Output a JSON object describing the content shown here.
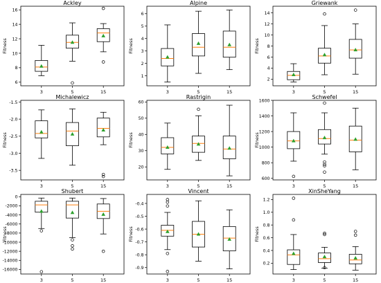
{
  "x_tick_labels": [
    "3",
    "5",
    "15"
  ],
  "ylabel": "Fitness",
  "colors": {
    "box": "#000000",
    "median": "#ff7f0e",
    "mean": "#2ca02c",
    "background": "#ffffff"
  },
  "chart_data": [
    {
      "type": "box",
      "title": "Ackley",
      "ylabel": "Fitness",
      "categories": [
        "3",
        "5",
        "15"
      ],
      "ylim": [
        5.5,
        16.5
      ],
      "yticks": [
        6,
        8,
        10,
        12,
        14,
        16
      ],
      "ytick_labels": [
        "6",
        "8",
        "10",
        "12",
        "14",
        "16"
      ],
      "boxes": [
        {
          "whislo": 6.9,
          "q1": 7.5,
          "med": 8.1,
          "q3": 9.0,
          "whishi": 11.1,
          "mean": 8.2,
          "fliers": []
        },
        {
          "whislo": 8.9,
          "q1": 10.7,
          "med": 11.5,
          "q3": 12.5,
          "whishi": 14.2,
          "mean": 11.5,
          "fliers": [
            5.9
          ]
        },
        {
          "whislo": 10.2,
          "q1": 11.6,
          "med": 12.8,
          "q3": 13.4,
          "whishi": 14.1,
          "mean": 12.4,
          "fliers": [
            16.2,
            8.8
          ]
        }
      ]
    },
    {
      "type": "box",
      "title": "Alpine",
      "ylabel": "Fitness",
      "categories": [
        "3",
        "5",
        "15"
      ],
      "ylim": [
        0.2,
        6.6
      ],
      "yticks": [
        1,
        2,
        3,
        4,
        5,
        6
      ],
      "ytick_labels": [
        "1",
        "2",
        "3",
        "4",
        "5",
        "6"
      ],
      "boxes": [
        {
          "whislo": 0.5,
          "q1": 1.8,
          "med": 2.4,
          "q3": 3.2,
          "whishi": 5.1,
          "mean": 2.5,
          "fliers": []
        },
        {
          "whislo": 1.2,
          "q1": 2.6,
          "med": 3.3,
          "q3": 4.4,
          "whishi": 6.2,
          "mean": 3.6,
          "fliers": []
        },
        {
          "whislo": 1.5,
          "q1": 2.5,
          "med": 3.3,
          "q3": 4.6,
          "whishi": 6.3,
          "mean": 3.5,
          "fliers": []
        }
      ]
    },
    {
      "type": "box",
      "title": "Griewank",
      "ylabel": "Fitness",
      "categories": [
        "3",
        "5",
        "15"
      ],
      "ylim": [
        0.8,
        15.2
      ],
      "yticks": [
        2,
        4,
        6,
        8,
        10,
        12,
        14
      ],
      "ytick_labels": [
        "2",
        "4",
        "6",
        "8",
        "10",
        "12",
        "14"
      ],
      "boxes": [
        {
          "whislo": 1.5,
          "q1": 1.9,
          "med": 2.7,
          "q3": 3.4,
          "whishi": 4.8,
          "mean": 2.8,
          "fliers": []
        },
        {
          "whislo": 2.8,
          "q1": 4.9,
          "med": 6.2,
          "q3": 7.6,
          "whishi": 11.7,
          "mean": 6.4,
          "fliers": [
            13.8
          ]
        },
        {
          "whislo": 2.9,
          "q1": 5.8,
          "med": 7.3,
          "q3": 9.2,
          "whishi": 12.0,
          "mean": 7.3,
          "fliers": [
            14.5
          ]
        }
      ]
    },
    {
      "type": "box",
      "title": "Michalewicz",
      "ylabel": "Fitness",
      "categories": [
        "3",
        "5",
        "15"
      ],
      "ylim": [
        -3.78,
        -1.45
      ],
      "yticks": [
        -3.5,
        -3.0,
        -2.5,
        -2.0,
        -1.5
      ],
      "ytick_labels": [
        "-3.5",
        "-3.0",
        "-2.5",
        "-2.0",
        "-1.5"
      ],
      "boxes": [
        {
          "whislo": -3.15,
          "q1": -2.55,
          "med": -2.42,
          "q3": -2.05,
          "whishi": -1.73,
          "mean": -2.38,
          "fliers": []
        },
        {
          "whislo": -3.35,
          "q1": -2.78,
          "med": -2.35,
          "q3": -2.1,
          "whishi": -1.7,
          "mean": -2.44,
          "fliers": []
        },
        {
          "whislo": -2.75,
          "q1": -2.52,
          "med": -2.27,
          "q3": -1.97,
          "whishi": -1.8,
          "mean": -2.32,
          "fliers": [
            -3.62,
            -3.68
          ]
        }
      ]
    },
    {
      "type": "box",
      "title": "Rastrigin",
      "ylabel": "Fitness",
      "categories": [
        "3",
        "5",
        "15"
      ],
      "ylim": [
        12,
        61
      ],
      "yticks": [
        20,
        30,
        40,
        50,
        60
      ],
      "ytick_labels": [
        "20",
        "30",
        "40",
        "50",
        "60"
      ],
      "boxes": [
        {
          "whislo": 18.5,
          "q1": 28.0,
          "med": 32.0,
          "q3": 38.0,
          "whishi": 47.0,
          "mean": 32.0,
          "fliers": []
        },
        {
          "whislo": 24.0,
          "q1": 29.0,
          "med": 34.5,
          "q3": 39.0,
          "whishi": 51.5,
          "mean": 34.0,
          "fliers": [
            55.5
          ]
        },
        {
          "whislo": 14.5,
          "q1": 25.0,
          "med": 31.0,
          "q3": 39.0,
          "whishi": 58.0,
          "mean": 31.5,
          "fliers": []
        }
      ]
    },
    {
      "type": "box",
      "title": "Schwefel",
      "ylabel": "Fitness",
      "categories": [
        "3",
        "5",
        "15"
      ],
      "ylim": [
        580,
        1600
      ],
      "yticks": [
        600,
        800,
        1000,
        1200,
        1400,
        1600
      ],
      "ytick_labels": [
        "600",
        "800",
        "1000",
        "1200",
        "1400",
        "1600"
      ],
      "boxes": [
        {
          "whislo": 820,
          "q1": 980,
          "med": 1080,
          "q3": 1200,
          "whishi": 1440,
          "mean": 1080,
          "fliers": [
            625
          ]
        },
        {
          "whislo": 910,
          "q1": 1040,
          "med": 1110,
          "q3": 1225,
          "whishi": 1440,
          "mean": 1120,
          "fliers": [
            1565,
            810,
            780,
            760,
            680
          ]
        },
        {
          "whislo": 710,
          "q1": 940,
          "med": 1090,
          "q3": 1270,
          "whishi": 1500,
          "mean": 1100,
          "fliers": []
        }
      ]
    },
    {
      "type": "box",
      "title": "Shubert",
      "ylabel": "Fitness",
      "categories": [
        "3",
        "5",
        "15"
      ],
      "ylim": [
        -17000,
        500
      ],
      "yticks": [
        -16000,
        -14000,
        -12000,
        -10000,
        -8000,
        -6000,
        -4000,
        -2000,
        0
      ],
      "ytick_labels": [
        "-16000",
        "-14000",
        "-12000",
        "-10000",
        "-8000",
        "-6000",
        "-4000",
        "-2000",
        "0"
      ],
      "boxes": [
        {
          "whislo": -7000,
          "q1": -3400,
          "med": -1800,
          "q3": -1000,
          "whishi": -300,
          "mean": -3200,
          "fliers": [
            -7500,
            -16500
          ]
        },
        {
          "whislo": -9000,
          "q1": -4700,
          "med": -1800,
          "q3": -1000,
          "whishi": -300,
          "mean": -3500,
          "fliers": [
            -9500,
            -10800,
            -11500
          ]
        },
        {
          "whislo": -8200,
          "q1": -4800,
          "med": -3200,
          "q3": -1600,
          "whishi": -400,
          "mean": -3900,
          "fliers": [
            -12000
          ]
        }
      ]
    },
    {
      "type": "box",
      "title": "Vincent",
      "ylabel": "Fitness",
      "categories": [
        "3",
        "5",
        "15"
      ],
      "ylim": [
        -0.95,
        -0.33
      ],
      "yticks": [
        -0.9,
        -0.8,
        -0.7,
        -0.6,
        -0.5,
        -0.4
      ],
      "ytick_labels": [
        "-0.9",
        "-0.8",
        "-0.7",
        "-0.6",
        "-0.5",
        "-0.4"
      ],
      "boxes": [
        {
          "whislo": -0.76,
          "q1": -0.655,
          "med": -0.61,
          "q3": -0.57,
          "whishi": -0.47,
          "mean": -0.62,
          "fliers": [
            -0.37,
            -0.39,
            -0.42,
            -0.79,
            -0.93
          ]
        },
        {
          "whislo": -0.85,
          "q1": -0.74,
          "med": -0.64,
          "q3": -0.54,
          "whishi": -0.38,
          "mean": -0.64,
          "fliers": []
        },
        {
          "whislo": -0.91,
          "q1": -0.77,
          "med": -0.67,
          "q3": -0.58,
          "whishi": -0.45,
          "mean": -0.68,
          "fliers": []
        }
      ]
    },
    {
      "type": "box",
      "title": "XinSheYang",
      "ylabel": "Fitness",
      "categories": [
        "3",
        "5",
        "15"
      ],
      "ylim": [
        0.03,
        1.28
      ],
      "yticks": [
        0.2,
        0.4,
        0.6,
        0.8,
        1.0,
        1.2
      ],
      "ytick_labels": [
        "0.2",
        "0.4",
        "0.6",
        "0.8",
        "1.0",
        "1.2"
      ],
      "boxes": [
        {
          "whislo": 0.1,
          "q1": 0.18,
          "med": 0.33,
          "q3": 0.41,
          "whishi": 0.65,
          "mean": 0.35,
          "fliers": [
            1.22,
            0.88
          ]
        },
        {
          "whislo": 0.12,
          "q1": 0.21,
          "med": 0.27,
          "q3": 0.36,
          "whishi": 0.45,
          "mean": 0.3,
          "fliers": [
            0.65,
            0.67,
            0.13
          ]
        },
        {
          "whislo": 0.09,
          "q1": 0.19,
          "med": 0.25,
          "q3": 0.34,
          "whishi": 0.46,
          "mean": 0.28,
          "fliers": [
            0.64,
            0.7
          ]
        }
      ]
    }
  ]
}
